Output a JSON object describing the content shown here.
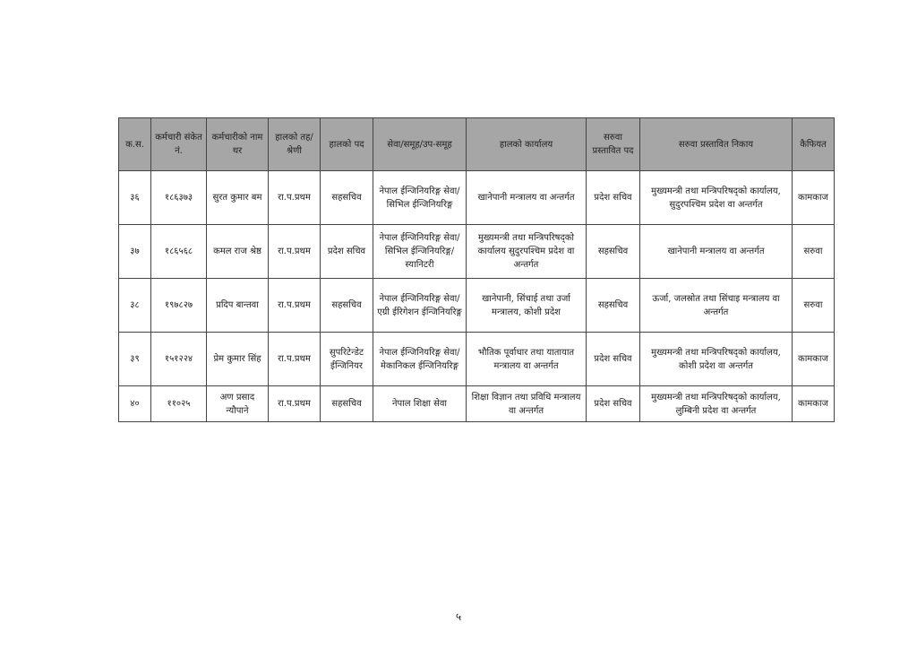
{
  "table": {
    "headers": [
      "क.स.",
      "कर्मचारी संकेत नं.",
      "कर्मचारीको नाम थर",
      "हालको तह/श्रेणी",
      "हालको पद",
      "सेवा/समूह/उप-समूह",
      "हालको कार्यालय",
      "सरुवा प्रस्तावित पद",
      "सरुवा प्रस्तावित निकाय",
      "कैफियत"
    ],
    "rows": [
      [
        "३६",
        "१८६३७३",
        "सुरत कुमार बम",
        "रा.प.प्रथम",
        "सहसचिव",
        "नेपाल ईन्जिनियरिङ्ग सेवा/सिभिल ईन्जिनियरिङ्ग",
        "खानेपानी मन्त्रालय वा अन्तर्गत",
        "प्रदेश सचिव",
        "मुख्यमन्त्री तथा मन्त्रिपरिषद्को कार्यालय, सुदुरपश्चिम प्रदेश वा अन्तर्गत",
        "कामकाज"
      ],
      [
        "३७",
        "१८६५६८",
        "कमल राज श्रेष्ठ",
        "रा.प.प्रथम",
        "प्रदेश सचिव",
        "नेपाल ईन्जिनियरिङ्ग सेवा/सिभिल ईन्जिनियरिङ्ग/स्यानिटरी",
        "मुख्यमन्त्री तथा मन्त्रिपरिषद्को कार्यालय सुदुरपश्चिम प्रदेश वा अन्तर्गत",
        "सहसचिव",
        "खानेपानी मन्त्रालय वा अन्तर्गत",
        "सरुवा"
      ],
      [
        "३८",
        "१९७८२७",
        "प्रदिप बान्तवा",
        "रा.प.प्रथम",
        "सहसचिव",
        "नेपाल ईन्जिनियरिङ्ग सेवा/एग्री ईरिगेशन ईन्जिनियरिङ्ग",
        "खानेपानी, सिंचाई तथा उर्जा मन्त्रालय, कोशी प्रदेश",
        "सहसचिव",
        "ऊर्जा, जलस्रोत तथा सिंचाइ मन्त्रालय वा अन्तर्गत",
        "सरुवा"
      ],
      [
        "३९",
        "१५१२२४",
        "प्रेम कुमार सिंह",
        "रा.प.प्रथम",
        "सुपरिटेन्डेट ईन्जिनियर",
        "नेपाल ईन्जिनियरिङ्ग सेवा/मेकानिकल ईन्जिनियरिङ्ग",
        "भौतिक पूर्वाधार तथा यातायात मन्त्रालय वा अन्तर्गत",
        "प्रदेश सचिव",
        "मुख्यमन्त्री तथा मन्त्रिपरिषद्को कार्यालय, कोशी प्रदेश वा अन्तर्गत",
        "कामकाज"
      ],
      [
        "४०",
        "११०२५",
        "अण प्रसाद न्यौपाने",
        "रा.प.प्रथम",
        "सहसचिव",
        "नेपाल शिक्षा सेवा",
        "शिक्षा विज्ञान तथा प्रविधि मन्त्रालय वा अन्तर्गत",
        "प्रदेश सचिव",
        "मुख्यमन्त्री तथा मन्त्रिपरिषद्को कार्यालय, लुम्बिनी प्रदेश वा अन्तर्गत",
        "कामकाज"
      ]
    ]
  },
  "page_number": "५",
  "colors": {
    "header_bg": "#a6a6a6",
    "border": "#444444"
  }
}
